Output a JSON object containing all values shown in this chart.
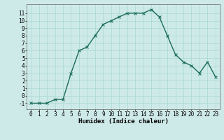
{
  "x": [
    0,
    1,
    2,
    3,
    4,
    5,
    6,
    7,
    8,
    9,
    10,
    11,
    12,
    13,
    14,
    15,
    16,
    17,
    18,
    19,
    20,
    21,
    22,
    23
  ],
  "y": [
    -1,
    -1,
    -1,
    -0.5,
    -0.5,
    3,
    6,
    6.5,
    8,
    9.5,
    10,
    10.5,
    11,
    11,
    11,
    11.5,
    10.5,
    8,
    5.5,
    4.5,
    4,
    3,
    4.5,
    2.5
  ],
  "line_color": "#1a6b5a",
  "marker": "x",
  "marker_size": 3,
  "bg_color": "#ceeae8",
  "grid_color": "#a8d8d4",
  "xlabel": "Humidex (Indice chaleur)",
  "xlim": [
    -0.5,
    23.5
  ],
  "ylim": [
    -1.8,
    12.2
  ],
  "xtick_labels": [
    "0",
    "1",
    "2",
    "3",
    "4",
    "5",
    "6",
    "7",
    "8",
    "9",
    "10",
    "11",
    "12",
    "13",
    "14",
    "15",
    "16",
    "17",
    "18",
    "19",
    "20",
    "21",
    "22",
    "23"
  ],
  "ytick_values": [
    -1,
    0,
    1,
    2,
    3,
    4,
    5,
    6,
    7,
    8,
    9,
    10,
    11
  ],
  "xlabel_fontsize": 6.5,
  "tick_fontsize": 5.5,
  "linewidth": 1.0,
  "markeredgewidth": 0.7
}
